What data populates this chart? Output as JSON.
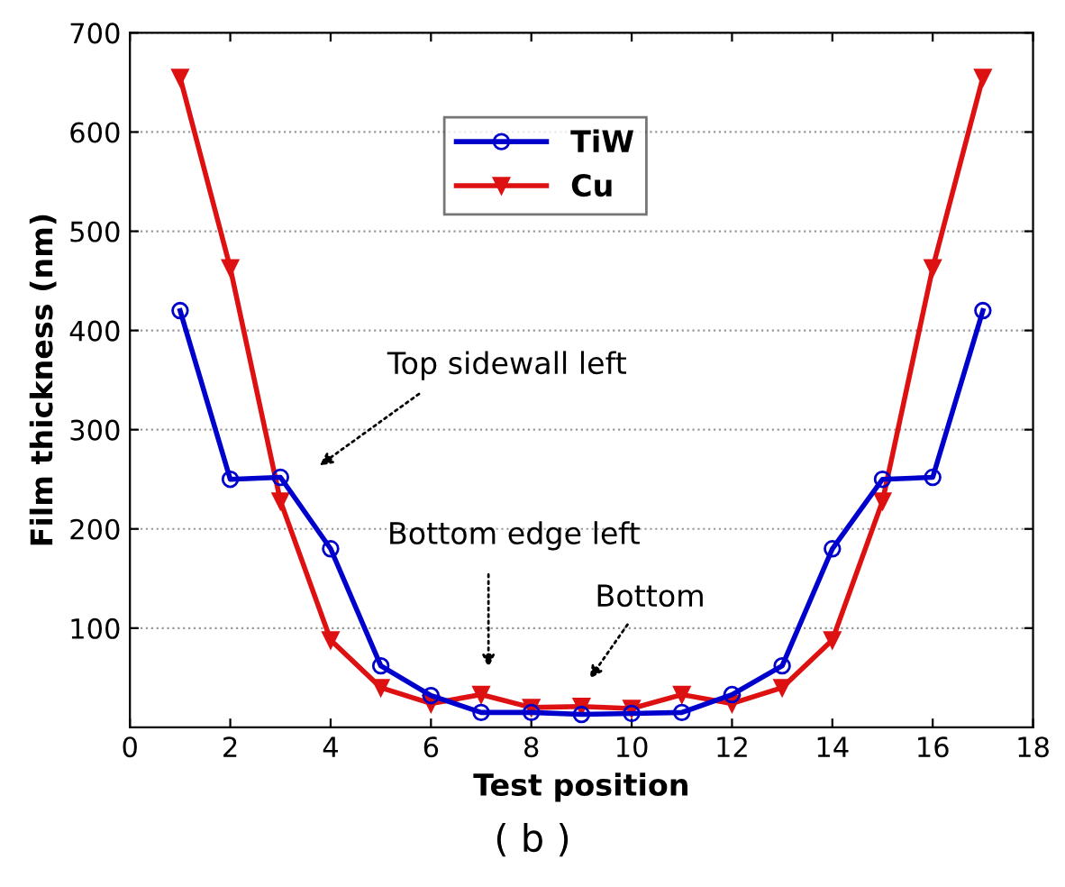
{
  "chart_data": {
    "type": "line",
    "xlabel": "Test position",
    "ylabel": "Film thickness (nm)",
    "x": [
      1,
      2,
      3,
      4,
      5,
      6,
      7,
      8,
      9,
      10,
      11,
      12,
      13,
      14,
      15,
      16,
      17
    ],
    "series": [
      {
        "name": "TiW",
        "color": "#0000cc",
        "marker": "circle",
        "values": [
          420,
          250,
          252,
          180,
          62,
          32,
          15,
          15,
          13,
          14,
          15,
          33,
          62,
          180,
          250,
          252,
          420
        ]
      },
      {
        "name": "Cu",
        "color": "#dd1111",
        "marker": "triangle",
        "values": [
          655,
          463,
          228,
          88,
          40,
          24,
          33,
          20,
          21,
          19,
          33,
          24,
          40,
          88,
          228,
          463,
          655
        ]
      }
    ],
    "xlim": [
      0,
      18
    ],
    "xticks": [
      0,
      2,
      4,
      6,
      8,
      10,
      12,
      14,
      16,
      18
    ],
    "ylim": [
      0,
      700
    ],
    "yticks": [
      100,
      200,
      300,
      400,
      500,
      600,
      700
    ],
    "grid": "y",
    "legend": "top",
    "line_style": "solid",
    "annotations": [
      "Top sidewall left",
      "Bottom edge left",
      "Bottom",
      "( b )"
    ]
  }
}
